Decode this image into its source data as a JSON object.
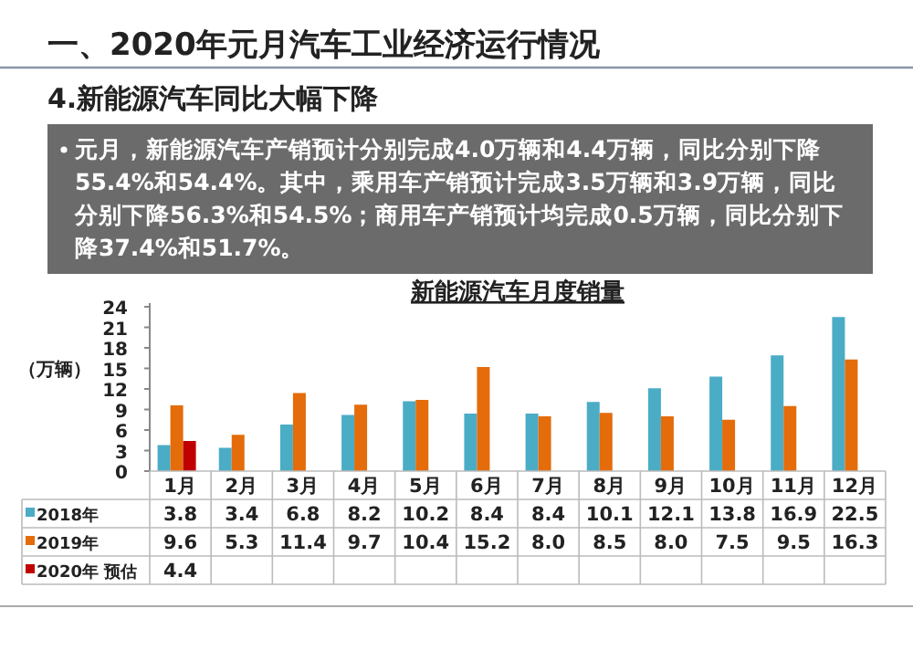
{
  "chart_data": {
    "type": "bar",
    "title": "新能源汽车月度销量",
    "ylabel": "（万辆）",
    "annotations": [
      "一、2020年元月汽车工业经济运行情况",
      "4.新能源汽车同比大幅下降",
      "元月，新能源汽车产销预计分别完成4.0万辆和4.4万辆，同比分别下降55.4%和54.4%。其中，乘用车产销预计完成3.5万辆和3.9万辆，同比分别下降56.3%和54.5%；商用车产销预计均完成0.5万辆，同比分别下降37.4%和51.7%。"
    ],
    "categories": [
      "1月",
      "2月",
      "3月",
      "4月",
      "5月",
      "6月",
      "7月",
      "8月",
      "9月",
      "10月",
      "11月",
      "12月"
    ],
    "series": [
      {
        "name": "2018年",
        "color": "#4bacc6",
        "values": [
          3.8,
          3.4,
          6.8,
          8.2,
          10.2,
          8.4,
          8.4,
          10.1,
          12.1,
          13.8,
          16.9,
          22.5
        ],
        "value_labels": [
          "3.8",
          "3.4",
          "6.8",
          "8.2",
          "10.2",
          "8.4",
          "8.4",
          "10.1",
          "12.1",
          "13.8",
          "16.9",
          "22.5"
        ]
      },
      {
        "name": "2019年",
        "color": "#e46c0a",
        "values": [
          9.6,
          5.3,
          11.4,
          9.7,
          10.4,
          15.2,
          8.0,
          8.5,
          8.0,
          7.5,
          9.5,
          16.3
        ],
        "value_labels": [
          "9.6",
          "5.3",
          "11.4",
          "9.7",
          "10.4",
          "15.2",
          "8.0",
          "8.5",
          "8.0",
          "7.5",
          "9.5",
          "16.3"
        ]
      },
      {
        "name": "2020年 预估",
        "color": "#c00000",
        "values": [
          4.4,
          null,
          null,
          null,
          null,
          null,
          null,
          null,
          null,
          null,
          null,
          null
        ],
        "value_labels": [
          "4.4",
          null,
          null,
          null,
          null,
          null,
          null,
          null,
          null,
          null,
          null,
          null
        ]
      }
    ],
    "ylim": [
      0,
      24
    ],
    "yticks": [
      0,
      3,
      6,
      9,
      12,
      15,
      18,
      21,
      24
    ],
    "legend": "bottom"
  }
}
